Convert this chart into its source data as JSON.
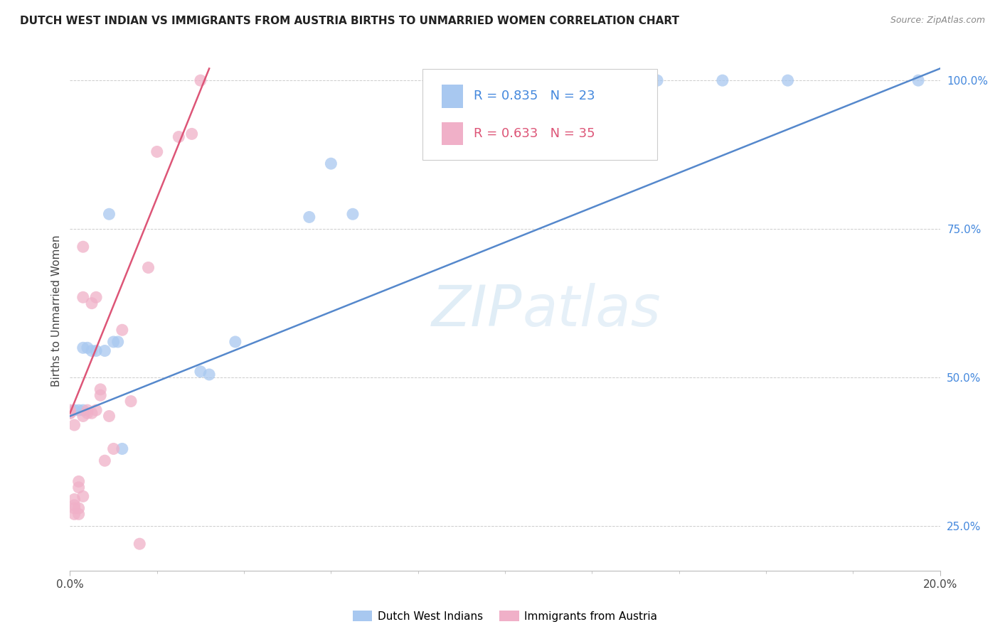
{
  "title": "DUTCH WEST INDIAN VS IMMIGRANTS FROM AUSTRIA BIRTHS TO UNMARRIED WOMEN CORRELATION CHART",
  "source": "Source: ZipAtlas.com",
  "ylabel": "Births to Unmarried Women",
  "xmin": 0.0,
  "xmax": 0.2,
  "ymin": 0.175,
  "ymax": 1.05,
  "y_tick_labels": [
    "25.0%",
    "50.0%",
    "75.0%",
    "100.0%"
  ],
  "y_tick_positions": [
    0.25,
    0.5,
    0.75,
    1.0
  ],
  "blue_R": 0.835,
  "blue_N": 23,
  "pink_R": 0.633,
  "pink_N": 35,
  "blue_color": "#a8c8f0",
  "pink_color": "#f0b0c8",
  "blue_line_color": "#5588cc",
  "pink_line_color": "#dd5577",
  "watermark_zip": "ZIP",
  "watermark_atlas": "atlas",
  "blue_scatter_x": [
    0.001,
    0.002,
    0.003,
    0.003,
    0.004,
    0.005,
    0.006,
    0.008,
    0.009,
    0.01,
    0.011,
    0.012,
    0.03,
    0.032,
    0.038,
    0.055,
    0.06,
    0.065,
    0.115,
    0.135,
    0.15,
    0.165,
    0.195
  ],
  "blue_scatter_y": [
    0.445,
    0.445,
    0.445,
    0.55,
    0.55,
    0.545,
    0.545,
    0.545,
    0.775,
    0.56,
    0.56,
    0.38,
    0.51,
    0.505,
    0.56,
    0.77,
    0.86,
    0.775,
    0.885,
    1.0,
    1.0,
    1.0,
    1.0
  ],
  "pink_scatter_x": [
    0.0,
    0.0,
    0.0,
    0.001,
    0.001,
    0.001,
    0.001,
    0.001,
    0.002,
    0.002,
    0.002,
    0.002,
    0.003,
    0.003,
    0.003,
    0.003,
    0.004,
    0.004,
    0.005,
    0.005,
    0.006,
    0.006,
    0.007,
    0.007,
    0.008,
    0.009,
    0.01,
    0.012,
    0.014,
    0.016,
    0.018,
    0.02,
    0.025,
    0.028,
    0.03
  ],
  "pink_scatter_y": [
    0.44,
    0.44,
    0.445,
    0.27,
    0.28,
    0.285,
    0.295,
    0.42,
    0.27,
    0.28,
    0.315,
    0.325,
    0.3,
    0.435,
    0.635,
    0.72,
    0.445,
    0.44,
    0.44,
    0.625,
    0.445,
    0.635,
    0.47,
    0.48,
    0.36,
    0.435,
    0.38,
    0.58,
    0.46,
    0.22,
    0.685,
    0.88,
    0.905,
    0.91,
    1.0
  ],
  "background_color": "#ffffff",
  "grid_color": "#cccccc",
  "blue_line_x": [
    0.0,
    0.2
  ],
  "blue_line_y": [
    0.435,
    1.02
  ],
  "pink_line_x": [
    0.0,
    0.032
  ],
  "pink_line_y": [
    0.44,
    1.02
  ]
}
